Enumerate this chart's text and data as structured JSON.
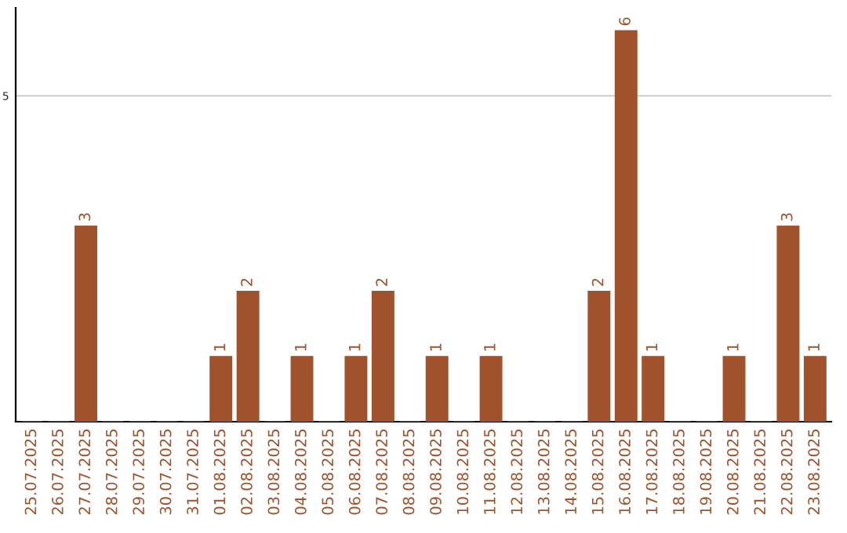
{
  "chart_data": {
    "type": "bar",
    "categories": [
      "25.07.2025",
      "26.07.2025",
      "27.07.2025",
      "28.07.2025",
      "29.07.2025",
      "30.07.2025",
      "31.07.2025",
      "01.08.2025",
      "02.08.2025",
      "03.08.2025",
      "04.08.2025",
      "05.08.2025",
      "06.08.2025",
      "07.08.2025",
      "08.08.2025",
      "09.08.2025",
      "10.08.2025",
      "11.08.2025",
      "12.08.2025",
      "13.08.2025",
      "14.08.2025",
      "15.08.2025",
      "16.08.2025",
      "17.08.2025",
      "18.08.2025",
      "19.08.2025",
      "20.08.2025",
      "21.08.2025",
      "22.08.2025",
      "23.08.2025"
    ],
    "values": [
      0,
      0,
      3,
      0,
      0,
      0,
      0,
      1,
      2,
      0,
      1,
      0,
      1,
      2,
      0,
      1,
      0,
      1,
      0,
      0,
      0,
      2,
      6,
      1,
      0,
      0,
      1,
      0,
      3,
      1
    ],
    "value_labels": [
      null,
      null,
      "3",
      null,
      null,
      null,
      null,
      "1",
      "2",
      null,
      "1",
      null,
      "1",
      "2",
      null,
      "1",
      null,
      "1",
      null,
      null,
      null,
      "2",
      "6",
      "1",
      null,
      null,
      "1",
      null,
      "3",
      "1"
    ],
    "color": "#a0522d",
    "ylim": [
      0,
      6.35
    ],
    "yticks": [
      5
    ],
    "grid": "y"
  }
}
